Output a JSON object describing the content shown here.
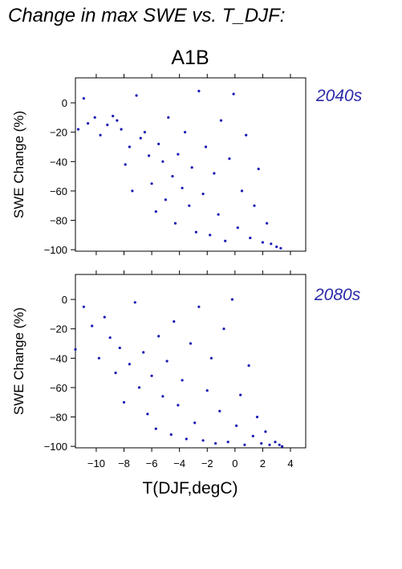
{
  "figure_title": "Change in max SWE vs. T_DJF:",
  "scenario": "A1B",
  "xlabel": "T(DJF,degC)",
  "ylabel": "SWE Change (%)",
  "colors": {
    "points": "#1a1ab4",
    "period_label": "#2a2aaa",
    "axis": "#000000"
  },
  "chart_data": [
    {
      "type": "scatter",
      "panel_label": "2040s",
      "xlabel": "",
      "ylabel": "SWE Change (%)",
      "xlim": [
        -11.5,
        5.1
      ],
      "ylim": [
        -101,
        17
      ],
      "xticks": [
        -10,
        -8,
        -6,
        -4,
        -2,
        0,
        2,
        4
      ],
      "yticks": [
        0,
        -20,
        -40,
        -60,
        -80,
        -100
      ],
      "xticklabels": [],
      "yticklabels": [
        "0",
        "−20",
        "−40",
        "−60",
        "−80",
        "−100"
      ],
      "grid": false,
      "series": [
        {
          "values": [
            [
              -11.3,
              -18
            ],
            [
              -10.9,
              3
            ],
            [
              -10.6,
              -14
            ],
            [
              -10.1,
              -10
            ],
            [
              -9.7,
              -22
            ],
            [
              -9.2,
              -15
            ],
            [
              -8.8,
              -9
            ],
            [
              -8.5,
              -12
            ],
            [
              -8.2,
              -18
            ],
            [
              -7.9,
              -42
            ],
            [
              -7.6,
              -30
            ],
            [
              -7.4,
              -60
            ],
            [
              -7.1,
              5
            ],
            [
              -6.8,
              -24
            ],
            [
              -6.5,
              -20
            ],
            [
              -6.2,
              -36
            ],
            [
              -6.0,
              -55
            ],
            [
              -5.7,
              -74
            ],
            [
              -5.5,
              -28
            ],
            [
              -5.2,
              -40
            ],
            [
              -5.0,
              -66
            ],
            [
              -4.8,
              -10
            ],
            [
              -4.5,
              -50
            ],
            [
              -4.3,
              -82
            ],
            [
              -4.1,
              -35
            ],
            [
              -3.8,
              -58
            ],
            [
              -3.6,
              -20
            ],
            [
              -3.3,
              -70
            ],
            [
              -3.1,
              -44
            ],
            [
              -2.8,
              -88
            ],
            [
              -2.6,
              8
            ],
            [
              -2.3,
              -62
            ],
            [
              -2.1,
              -30
            ],
            [
              -1.8,
              -90
            ],
            [
              -1.5,
              -48
            ],
            [
              -1.2,
              -76
            ],
            [
              -1.0,
              -12
            ],
            [
              -0.7,
              -94
            ],
            [
              -0.4,
              -38
            ],
            [
              -0.1,
              6
            ],
            [
              0.2,
              -85
            ],
            [
              0.5,
              -60
            ],
            [
              0.8,
              -22
            ],
            [
              1.1,
              -92
            ],
            [
              1.4,
              -70
            ],
            [
              1.7,
              -45
            ],
            [
              2.0,
              -95
            ],
            [
              2.3,
              -82
            ],
            [
              2.6,
              -96
            ],
            [
              3.0,
              -98
            ],
            [
              3.3,
              -99
            ]
          ]
        }
      ]
    },
    {
      "type": "scatter",
      "panel_label": "2080s",
      "xlabel": "T(DJF,degC)",
      "ylabel": "SWE Change (%)",
      "xlim": [
        -11.5,
        5.1
      ],
      "ylim": [
        -101,
        17
      ],
      "xticks": [
        -10,
        -8,
        -6,
        -4,
        -2,
        0,
        2,
        4
      ],
      "yticks": [
        0,
        -20,
        -40,
        -60,
        -80,
        -100
      ],
      "xticklabels": [
        "−10",
        "−8",
        "−6",
        "−4",
        "−2",
        "0",
        "2",
        "4"
      ],
      "yticklabels": [
        "0",
        "−20",
        "−40",
        "−60",
        "−80",
        "−100"
      ],
      "grid": false,
      "series": [
        {
          "values": [
            [
              -11.5,
              -34
            ],
            [
              -10.9,
              -5
            ],
            [
              -10.3,
              -18
            ],
            [
              -9.8,
              -40
            ],
            [
              -9.4,
              -12
            ],
            [
              -9.0,
              -26
            ],
            [
              -8.6,
              -50
            ],
            [
              -8.3,
              -33
            ],
            [
              -8.0,
              -70
            ],
            [
              -7.6,
              -44
            ],
            [
              -7.2,
              -2
            ],
            [
              -6.9,
              -60
            ],
            [
              -6.6,
              -36
            ],
            [
              -6.3,
              -78
            ],
            [
              -6.0,
              -52
            ],
            [
              -5.7,
              -88
            ],
            [
              -5.5,
              -25
            ],
            [
              -5.2,
              -66
            ],
            [
              -4.9,
              -42
            ],
            [
              -4.6,
              -92
            ],
            [
              -4.4,
              -15
            ],
            [
              -4.1,
              -72
            ],
            [
              -3.8,
              -55
            ],
            [
              -3.5,
              -95
            ],
            [
              -3.2,
              -30
            ],
            [
              -2.9,
              -84
            ],
            [
              -2.6,
              -5
            ],
            [
              -2.3,
              -96
            ],
            [
              -2.0,
              -62
            ],
            [
              -1.7,
              -40
            ],
            [
              -1.4,
              -98
            ],
            [
              -1.1,
              -76
            ],
            [
              -0.8,
              -20
            ],
            [
              -0.5,
              -97
            ],
            [
              -0.2,
              0
            ],
            [
              0.1,
              -86
            ],
            [
              0.4,
              -65
            ],
            [
              0.7,
              -99
            ],
            [
              1.0,
              -45
            ],
            [
              1.3,
              -93
            ],
            [
              1.6,
              -80
            ],
            [
              1.9,
              -98
            ],
            [
              2.2,
              -90
            ],
            [
              2.5,
              -99
            ],
            [
              2.9,
              -97
            ],
            [
              3.2,
              -99
            ],
            [
              3.4,
              -100
            ]
          ]
        }
      ]
    }
  ]
}
